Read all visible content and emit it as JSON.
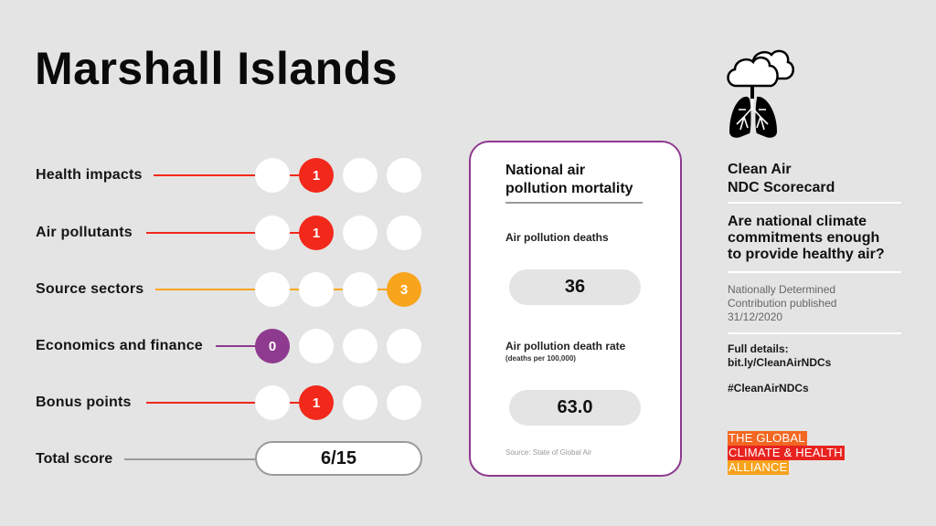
{
  "header": {
    "title": "Marshall Islands"
  },
  "colors": {
    "background": "#e4e4e4",
    "score_red": "#f2281b",
    "score_orange": "#f8a51c",
    "score_purple": "#8e3a8f",
    "card_border": "#8e3a8f",
    "total_line": "#9a9a9a",
    "logo_orange": "#f26722",
    "logo_red": "#e8231f",
    "logo_amber": "#f7a31c"
  },
  "scorecard": {
    "rows": [
      {
        "label": "Health impacts",
        "score": "1",
        "position": 2,
        "color": "#f2281b"
      },
      {
        "label": "Air pollutants",
        "score": "1",
        "position": 2,
        "color": "#f2281b"
      },
      {
        "label": "Source sectors",
        "score": "3",
        "position": 4,
        "color": "#f8a51c"
      },
      {
        "label": "Economics and finance",
        "score": "0",
        "position": 1,
        "color": "#8e3a8f"
      },
      {
        "label": "Bonus points",
        "score": "1",
        "position": 2,
        "color": "#f2281b"
      }
    ],
    "total": {
      "label": "Total score",
      "value": "6/15"
    }
  },
  "mortality_card": {
    "title_line1": "National air",
    "title_line2": "pollution mortality",
    "deaths_label": "Air pollution deaths",
    "deaths_value": "36",
    "rate_label": "Air pollution death rate",
    "rate_sublabel": "(deaths per 100,000)",
    "rate_value": "63.0",
    "source": "Source: State of Global Air"
  },
  "sidebar": {
    "icon": "cloud-lungs-icon",
    "heading_line1": "Clean Air",
    "heading_line2": "NDC Scorecard",
    "question_line1": "Are national climate",
    "question_line2": "commitments enough",
    "question_line3": "to provide healthy air?",
    "meta_line1": "Nationally Determined",
    "meta_line2": "Contribution published",
    "meta_line3": "31/12/2020",
    "details_label": "Full details:",
    "details_link": "bit.ly/CleanAirNDCs",
    "hashtag": "#CleanAirNDCs",
    "logo": {
      "line1": "THE GLOBAL",
      "line2": "CLIMATE & HEALTH",
      "line3": "ALLIANCE"
    }
  }
}
